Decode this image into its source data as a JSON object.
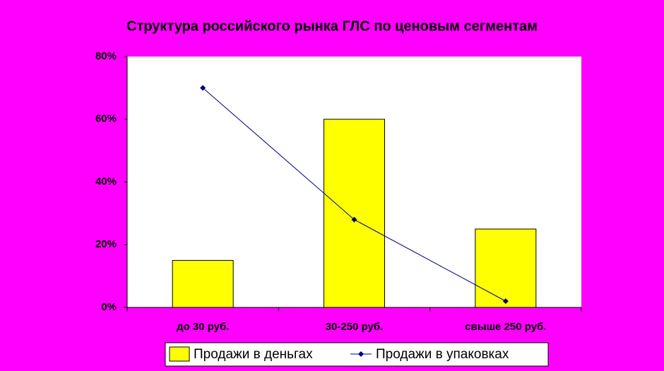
{
  "chart_data": {
    "type": "combo",
    "title": "Структура российского рынка ГЛС по ценовым сегментам",
    "categories": [
      "до 30 руб.",
      "30-250 руб.",
      "свыше 250 руб."
    ],
    "series": [
      {
        "name": "Продажи в деньгах",
        "type": "bar",
        "color": "#ffff00",
        "values": [
          15,
          60,
          25
        ]
      },
      {
        "name": "Продажи в упаковках",
        "type": "line",
        "color": "#000080",
        "values": [
          70,
          28,
          2
        ]
      }
    ],
    "ylim": [
      0,
      80
    ],
    "yticks": [
      {
        "value": 0,
        "label": "0%"
      },
      {
        "value": 20,
        "label": "20%"
      },
      {
        "value": 40,
        "label": "40%"
      },
      {
        "value": 60,
        "label": "60%"
      },
      {
        "value": 80,
        "label": "80%"
      }
    ],
    "grid": false,
    "legend": "bottom",
    "background": "#ff00ff"
  }
}
